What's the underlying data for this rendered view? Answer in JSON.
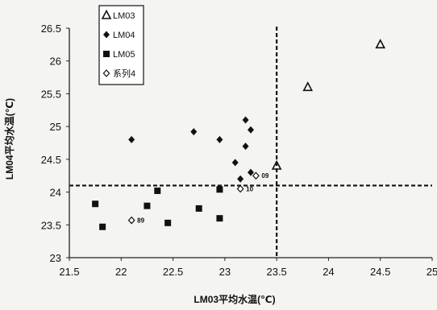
{
  "chart_data": {
    "type": "scatter",
    "xlabel": "LM03平均水温(℃)",
    "ylabel": "LM04平均水温(℃)",
    "xlim": [
      21.5,
      25
    ],
    "ylim": [
      23,
      26.5
    ],
    "x_ticks": [
      "21.5",
      "22",
      "22.5",
      "23",
      "23.5",
      "24",
      "24.5",
      "25"
    ],
    "y_ticks": [
      "23",
      "23.5",
      "24",
      "24.5",
      "25",
      "25.5",
      "26",
      "26.5"
    ],
    "reference_lines": {
      "x": 23.5,
      "y": 24.1
    },
    "legend_position": "top-left",
    "series": [
      {
        "name": "LM03",
        "marker": "triangle-open",
        "x": [
          23.5,
          23.8,
          24.5
        ],
        "y": [
          24.4,
          25.6,
          26.25
        ]
      },
      {
        "name": "LM04",
        "marker": "diamond-filled",
        "x": [
          22.1,
          22.7,
          22.95,
          23.1,
          23.15,
          23.2,
          23.2,
          23.25,
          23.25
        ],
        "y": [
          24.8,
          24.92,
          24.8,
          24.45,
          24.2,
          25.1,
          24.7,
          24.95,
          24.3
        ]
      },
      {
        "name": "LM05",
        "marker": "square-filled",
        "x": [
          21.75,
          21.82,
          22.25,
          22.35,
          22.45,
          22.75,
          22.95,
          22.95
        ],
        "y": [
          23.82,
          23.47,
          23.79,
          24.02,
          23.53,
          23.75,
          24.04,
          23.6
        ]
      },
      {
        "name": "系列4",
        "marker": "diamond-open",
        "x": [
          22.1,
          23.15,
          23.3
        ],
        "y": [
          23.57,
          24.05,
          24.25
        ]
      }
    ],
    "point_labels": [
      {
        "series": "系列4",
        "index": 0,
        "text": "89"
      },
      {
        "series": "系列4",
        "index": 1,
        "text": "10"
      },
      {
        "series": "系列4",
        "index": 2,
        "text": "09"
      }
    ]
  }
}
